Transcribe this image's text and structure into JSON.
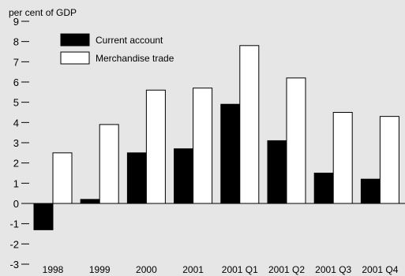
{
  "chart_data": {
    "type": "bar",
    "ylabel": "per cent of GDP",
    "ylim": [
      -3,
      9
    ],
    "yticks": [
      "9",
      "8",
      "7",
      "6",
      "5",
      "4",
      "3",
      "2",
      "1",
      "0",
      "-1",
      "-2",
      "-3"
    ],
    "categories": [
      "1998",
      "1999",
      "2000",
      "2001",
      "2001 Q1",
      "2001 Q2",
      "2001 Q3",
      "2001 Q4"
    ],
    "series": [
      {
        "name": "Current account",
        "color": "#000000",
        "values": [
          -1.3,
          0.2,
          2.5,
          2.7,
          4.9,
          3.1,
          1.5,
          1.2
        ]
      },
      {
        "name": "Merchandise trade",
        "color": "#ffffff",
        "values": [
          2.5,
          3.9,
          5.6,
          5.7,
          7.8,
          6.2,
          4.5,
          4.3
        ]
      }
    ],
    "legend": "top-left",
    "grid": false,
    "background": "#e6e6e6"
  }
}
